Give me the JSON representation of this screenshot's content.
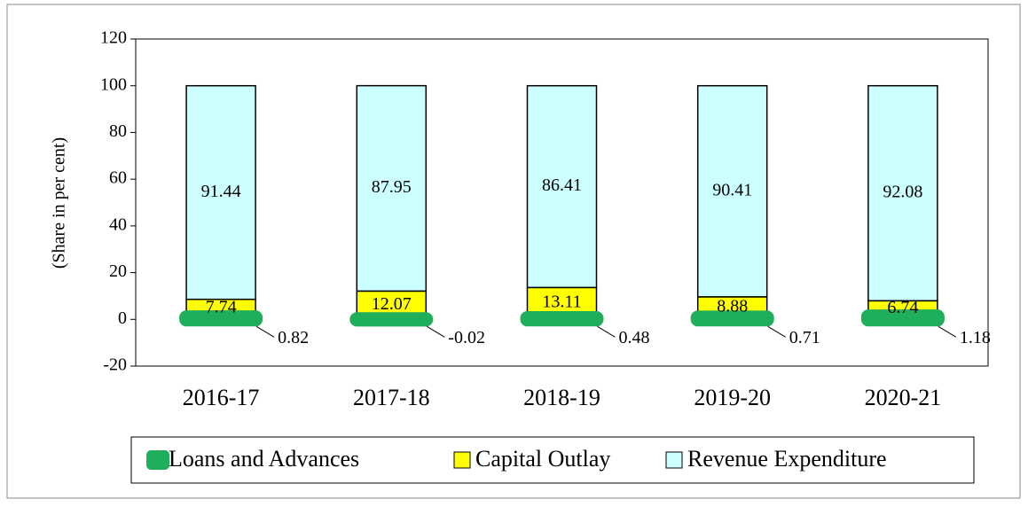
{
  "chart_data": {
    "type": "stacked_bar",
    "y_label": "(Share in per cent)",
    "categories": [
      "2016-17",
      "2017-18",
      "2018-19",
      "2019-20",
      "2020-21"
    ],
    "series": [
      {
        "name": "Loans and Advances",
        "color": "#1fae5a",
        "values": [
          0.82,
          -0.02,
          0.48,
          0.71,
          1.18
        ]
      },
      {
        "name": "Capital Outlay",
        "color": "#ffff00",
        "values": [
          7.74,
          12.07,
          13.11,
          8.88,
          6.74
        ]
      },
      {
        "name": "Revenue Expenditure",
        "color": "#ccffff",
        "values": [
          91.44,
          87.95,
          86.41,
          90.41,
          92.08
        ]
      }
    ],
    "ylim": [
      -20,
      120
    ],
    "yticks": [
      -20,
      0,
      20,
      40,
      60,
      80,
      100,
      120
    ],
    "legend": "bottom"
  }
}
